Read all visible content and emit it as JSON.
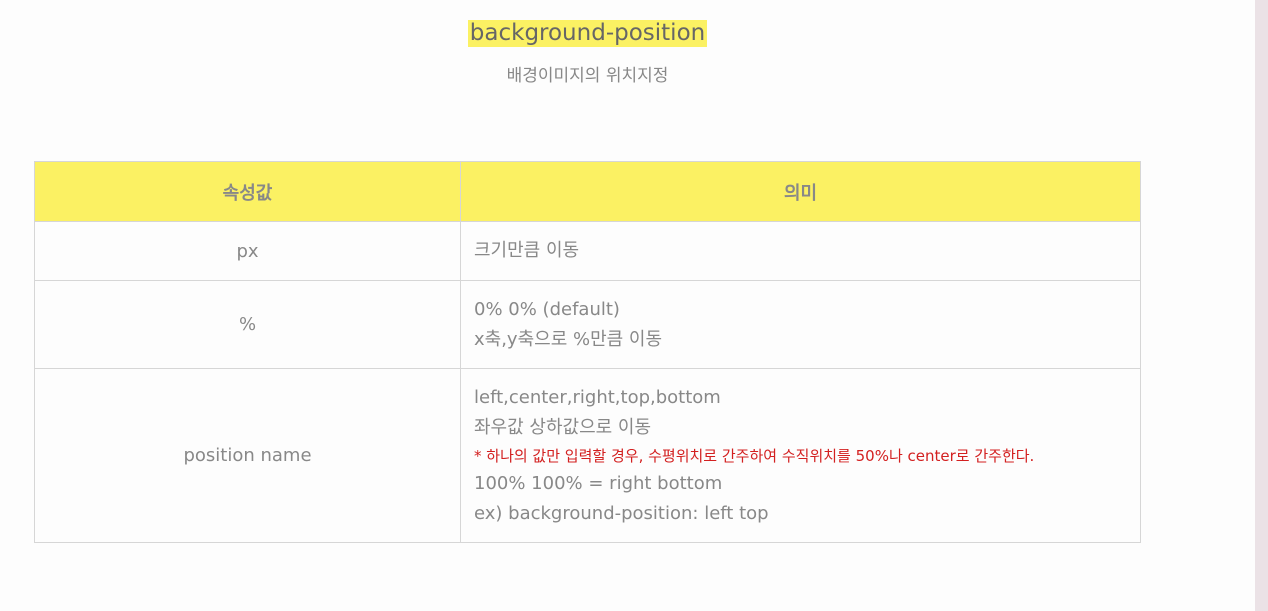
{
  "header": {
    "title": "background-position",
    "subtitle": "배경이미지의 위치지정"
  },
  "table": {
    "headers": [
      "속성값",
      "의미"
    ],
    "rows": [
      {
        "key": "px",
        "lines": [
          "크기만큼 이동"
        ]
      },
      {
        "key": "%",
        "lines": [
          "0% 0% (default)",
          "x축,y축으로 %만큼 이동"
        ]
      },
      {
        "key": "position name",
        "lines": [
          "left,center,right,top,bottom",
          "좌우값 상하값으로 이동"
        ],
        "note": "* 하나의 값만 입력할 경우, 수평위치로 간주하여 수직위치를 50%나 center로 간주한다.",
        "extra": [
          "100% 100% = right bottom",
          "ex) background-position: left top"
        ]
      }
    ]
  },
  "colors": {
    "highlight": "#fbf163",
    "note_red": "#d32020",
    "scrollbar": "#ebe2e6"
  }
}
